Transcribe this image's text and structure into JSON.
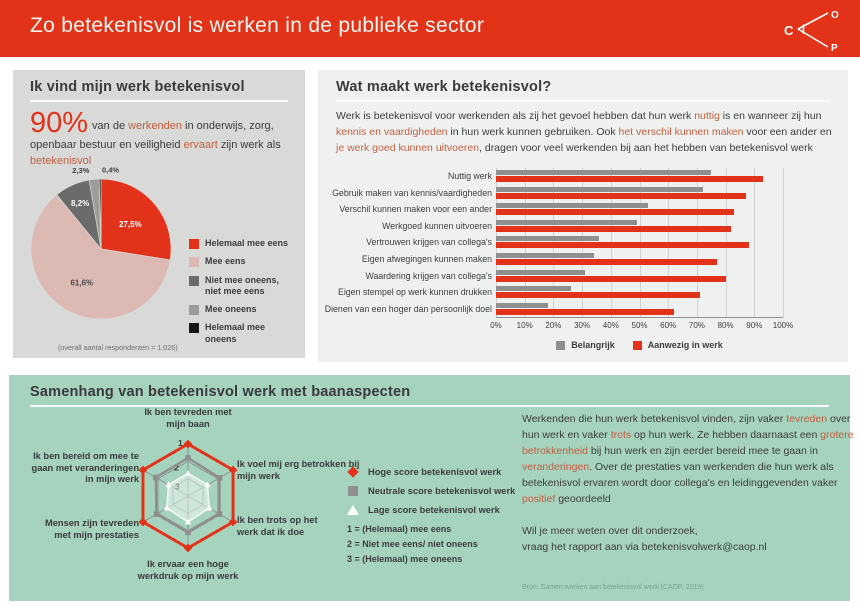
{
  "header": {
    "title": "Zo betekenisvol is werken in de publieke sector",
    "logo_letters": {
      "c": "C",
      "o": "O",
      "p": "P"
    }
  },
  "colors": {
    "accent_red": "#e2331a",
    "highlight_text": "#c55f40",
    "panel_gray": "#d9d9d8",
    "panel_light": "#eff1f0",
    "panel_green": "#a5d3be"
  },
  "panel_pie": {
    "title": "Ik vind mijn werk betekenisvol",
    "stat": "90%",
    "lead_segments": [
      {
        "t": "van de "
      },
      {
        "t": "werkenden",
        "hl": true
      },
      {
        "t": " in onderwijs, zorg, openbaar bestuur en veiligheid "
      },
      {
        "t": "ervaart",
        "hl": true
      },
      {
        "t": " zijn werk als "
      },
      {
        "t": "betekenisvol",
        "hl": true
      }
    ],
    "note": "(overall aantal respondenten = 1.026)"
  },
  "panel_bars": {
    "title": "Wat maakt werk betekenisvol?",
    "intro_segments": [
      {
        "t": "Werk is betekenisvol voor werkenden als zij het gevoel hebben dat hun werk "
      },
      {
        "t": "nuttig",
        "hl": true
      },
      {
        "t": " is en wanneer zij hun "
      },
      {
        "t": "kennis en vaardigheden",
        "hl": true
      },
      {
        "t": " in hun werk kunnen gebruiken. Ook "
      },
      {
        "t": "het verschil kunnen maken",
        "hl": true
      },
      {
        "t": " voor een ander en "
      },
      {
        "t": "je werk goed kunnen uitvoeren",
        "hl": true
      },
      {
        "t": ", dragen voor veel werkenden bij aan het hebben van betekenisvol werk"
      }
    ]
  },
  "panel_radar": {
    "title": "Samenhang van betekenisvol werk met baanaspecten",
    "body_segments": [
      {
        "t": "Werkenden die hun werk betekenisvol vinden, zijn vaker "
      },
      {
        "t": "tevreden",
        "hl": true
      },
      {
        "t": " over hun werk en vaker "
      },
      {
        "t": "trots",
        "hl": true
      },
      {
        "t": " op hun werk. Ze hebben daarnaast een "
      },
      {
        "t": "grotere betrokkenheid",
        "hl": true
      },
      {
        "t": " bij hun werk en zijn eerder bereid mee te gaan in "
      },
      {
        "t": "veranderingen",
        "hl": true
      },
      {
        "t": ". Over de prestaties van werkenden die hun werk als betekenisvol ervaren wordt door collega's en leidinggevenden vaker "
      },
      {
        "t": "positief",
        "hl": true
      },
      {
        "t": " geoordeeld"
      }
    ],
    "contact_line1": "Wil je meer weten over dit onderzoek,",
    "contact_line2": "vraag het rapport aan via betekenisvolwerk@caop.nl",
    "source": "Bron: Samen werken aan betekenisvol werk (CAOP, 2019)"
  },
  "chart_data": [
    {
      "type": "pie",
      "title": "Ik vind mijn werk betekenisvol",
      "start_angle_deg": 0,
      "direction": "clockwise",
      "note": "(overall aantal respondenten = 1.026)",
      "slices": [
        {
          "label": "Helemaal mee eens",
          "value": 27.5,
          "display": "27,5%",
          "color": "#e2331a",
          "label_inside": true,
          "text_color": "#ffffff"
        },
        {
          "label": "Mee eens",
          "value": 61.6,
          "display": "61,6%",
          "color": "#dcb9b3",
          "label_inside": true,
          "text_color": "#4a4a4a"
        },
        {
          "label": "Niet mee oneens, niet mee eens",
          "value": 8.2,
          "display": "8,2%",
          "color": "#6b6b6a",
          "label_inside": true,
          "text_color": "#ffffff"
        },
        {
          "label": "Mee oneens",
          "value": 2.3,
          "display": "2,3%",
          "color": "#9c9c9b",
          "label_inside": false
        },
        {
          "label": "Helemaal mee oneens",
          "value": 0.4,
          "display": "0,4%",
          "color": "#161616",
          "label_inside": false
        }
      ]
    },
    {
      "type": "bar",
      "orientation": "horizontal",
      "title": "Wat maakt werk betekenisvol?",
      "categories": [
        "Nuttig werk",
        "Gebruik maken van kennis/vaardigheden",
        "Verschil kunnen maken voor een ander",
        "Werkgoed kunnen uitvoeren",
        "Vertrouwen krijgen van collega's",
        "Eigen afwegingen kunnen maken",
        "Waardering krijgen van collega's",
        "Eigen stempel op werk kunnen drukken",
        "Dienen van een hoger dan persoonlijk doel"
      ],
      "series": [
        {
          "name": "Belangrijk",
          "color": "#8f8f8f",
          "values": [
            75,
            72,
            53,
            49,
            36,
            34,
            31,
            26,
            18
          ]
        },
        {
          "name": "Aanwezig in werk",
          "color": "#e2331a",
          "values": [
            93,
            87,
            83,
            82,
            88,
            77,
            80,
            71,
            62
          ]
        }
      ],
      "xlim": [
        0,
        100
      ],
      "x_ticks": [
        "0%",
        "10%",
        "20%",
        "30%",
        "40%",
        "50%",
        "60%",
        "70%",
        "80%",
        "90%",
        "100%"
      ],
      "grid": true,
      "legend_position": "bottom"
    },
    {
      "type": "radar",
      "title": "Samenhang van betekenisvol werk met baanaspecten",
      "axes": [
        "Ik ben tevreden met mijn baan",
        "Ik voel mij erg betrokken bij mijn werk",
        "Ik ben trots op het werk dat ik doe",
        "Ik ervaar een hoge werkdruk op mijn werk",
        "Mensen zijn tevreden met mijn prestaties",
        "Ik ben bereid om mee te gaan met veranderingen in mijn werk"
      ],
      "scale": {
        "outer_value": 1,
        "inner_value": 3,
        "rings": [
          1,
          2,
          3
        ],
        "ring_labels": [
          "1",
          "2",
          "3"
        ]
      },
      "series": [
        {
          "name": "Hoge score betekenisvol werk",
          "color": "#e2331a",
          "marker": "diamond",
          "values": [
            1,
            1,
            1,
            1,
            1,
            1
          ]
        },
        {
          "name": "Neutrale score betekenisvol werk",
          "color": "#8f8f8f",
          "marker": "square",
          "values": [
            1.8,
            1.9,
            1.9,
            1.9,
            1.9,
            1.85
          ]
        },
        {
          "name": "Lage score betekenisvol werk",
          "color": "#f2f7f2",
          "marker": "triangle",
          "values": [
            2.7,
            2.7,
            2.6,
            2.5,
            2.6,
            2.7
          ]
        }
      ],
      "scale_notes": [
        "1 = (Helemaal) mee eens",
        "2 = Niet mee eens/ niet oneens",
        "3 = (Helemaal) mee oneens"
      ]
    }
  ]
}
